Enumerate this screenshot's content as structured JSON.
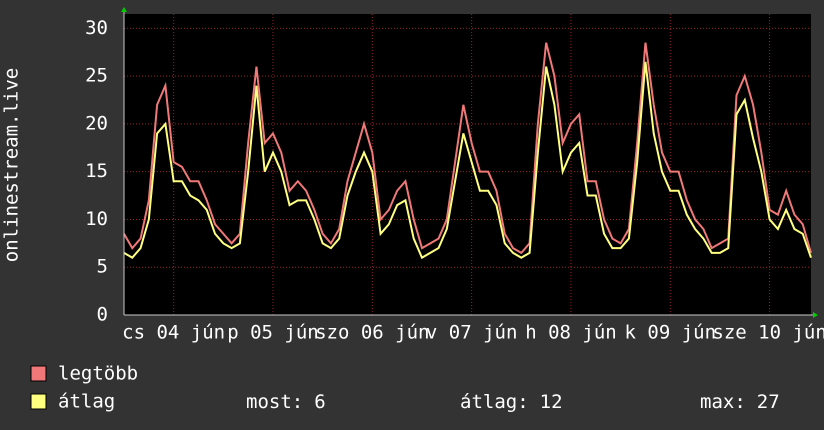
{
  "chart_data": {
    "type": "line",
    "ylabel": "onlinestream.live",
    "xlim": [
      0,
      83
    ],
    "ylim": [
      0,
      31.5
    ],
    "yticks": [
      0,
      5,
      10,
      15,
      20,
      25,
      30
    ],
    "xticks": [
      {
        "value": 6,
        "label": "cs 04 jún"
      },
      {
        "value": 18,
        "label": "p 05 jún"
      },
      {
        "value": 30,
        "label": "szo 06 jún"
      },
      {
        "value": 42,
        "label": "v 07 jún"
      },
      {
        "value": 54,
        "label": "h 08 jún"
      },
      {
        "value": 66,
        "label": "k 09 jún"
      },
      {
        "value": 78,
        "label": "sze 10 jún"
      }
    ],
    "grid": true,
    "series": [
      {
        "name": "legtöbb",
        "color": "#f07878",
        "values": [
          8.5,
          7,
          8,
          12,
          22,
          24,
          16,
          15.5,
          14,
          14,
          12,
          9.5,
          8.5,
          7.5,
          8.5,
          18,
          26,
          18,
          19,
          17,
          13,
          14,
          13,
          11,
          8.5,
          7.5,
          9,
          14,
          17,
          20,
          17,
          10,
          11,
          13,
          14,
          10,
          7,
          7.5,
          8,
          10,
          16,
          22,
          18,
          15,
          15,
          13,
          8.5,
          7,
          6.5,
          7.5,
          20,
          28.5,
          25,
          18,
          20,
          21,
          14,
          14,
          10,
          8,
          7.5,
          9,
          18,
          28.5,
          22,
          17,
          15,
          15,
          12,
          10,
          9,
          7,
          7.5,
          8,
          23,
          25,
          22,
          17,
          11,
          10.5,
          13,
          10.5,
          9.5,
          6.5
        ]
      },
      {
        "name": "átlag",
        "color": "#ffff80",
        "values": [
          6.5,
          6,
          7,
          10,
          19,
          20,
          14,
          14,
          12.5,
          12,
          11,
          8.5,
          7.5,
          7,
          7.5,
          15,
          24,
          15,
          17,
          15,
          11.5,
          12,
          12,
          10,
          7.5,
          7,
          8,
          12.5,
          15,
          17,
          15,
          8.5,
          9.5,
          11.5,
          12,
          8,
          6,
          6.5,
          7,
          9,
          14,
          19,
          16,
          13,
          13,
          11.5,
          7.5,
          6.5,
          6,
          6.5,
          17,
          26,
          22,
          15,
          17,
          18,
          12.5,
          12.5,
          8.5,
          7,
          7,
          8,
          16,
          26.5,
          19,
          15,
          13,
          13,
          10.5,
          9,
          8,
          6.5,
          6.5,
          7,
          21,
          22.5,
          18.5,
          15,
          10,
          9,
          11,
          9,
          8.5,
          6
        ]
      }
    ],
    "stats": [
      {
        "label": "most:",
        "value": 6
      },
      {
        "label": "átlag:",
        "value": 12
      },
      {
        "label": "max:",
        "value": 27
      }
    ]
  }
}
